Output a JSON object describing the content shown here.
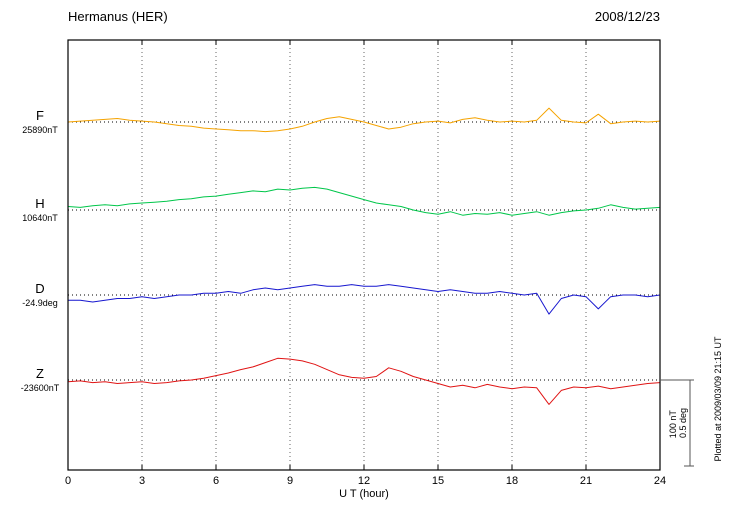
{
  "header": {
    "title": "Hermanus (HER)",
    "date": "2008/12/23"
  },
  "chart_data": {
    "type": "line",
    "title": "Hermanus (HER)",
    "date": "2008/12/23",
    "xlabel": "U T (hour)",
    "xlim": [
      0,
      24
    ],
    "xticks": [
      0,
      3,
      6,
      9,
      12,
      15,
      18,
      21,
      24
    ],
    "grid": "dotted vertical lines every 3 hours; dotted horizontal baseline per trace",
    "hours_step": 0.5,
    "scale_bar": {
      "labels": [
        "100 nT",
        "0.5 deg"
      ],
      "nT": 100,
      "deg": 0.5
    },
    "footer_note": "Plotted at 2009/03/09 21:15 UT",
    "series": [
      {
        "id": "F",
        "label": "F",
        "baseline_label": "25890nT",
        "unit": "nT",
        "color": "#f5a300",
        "values": [
          0,
          1,
          2,
          3,
          4,
          2,
          1,
          0,
          -2,
          -4,
          -5,
          -7,
          -8,
          -9,
          -10,
          -10,
          -11,
          -10,
          -8,
          -5,
          0,
          4,
          6,
          3,
          0,
          -4,
          -8,
          -6,
          -2,
          0,
          1,
          -1,
          3,
          5,
          2,
          0,
          1,
          0,
          2,
          16,
          2,
          0,
          -1,
          9,
          -2,
          0,
          1,
          0,
          1
        ]
      },
      {
        "id": "H",
        "label": "H",
        "baseline_label": "10640nT",
        "unit": "nT",
        "color": "#00c64a",
        "values": [
          4,
          3,
          5,
          6,
          5,
          7,
          8,
          9,
          10,
          12,
          13,
          15,
          16,
          18,
          20,
          22,
          21,
          24,
          23,
          25,
          26,
          24,
          20,
          16,
          12,
          8,
          6,
          4,
          0,
          -3,
          -5,
          -2,
          -6,
          -4,
          -5,
          -3,
          -6,
          -4,
          -2,
          -6,
          -3,
          -1,
          0,
          2,
          6,
          3,
          1,
          2,
          3
        ]
      },
      {
        "id": "D",
        "label": "D",
        "baseline_label": "-24.9deg",
        "unit": "deg",
        "color": "#1717cf",
        "values": [
          -0.03,
          -0.03,
          -0.04,
          -0.03,
          -0.02,
          -0.02,
          -0.01,
          -0.02,
          -0.01,
          0,
          0,
          0.01,
          0.01,
          0.02,
          0.01,
          0.03,
          0.04,
          0.03,
          0.04,
          0.05,
          0.06,
          0.05,
          0.05,
          0.06,
          0.05,
          0.05,
          0.06,
          0.05,
          0.04,
          0.03,
          0.02,
          0.03,
          0.02,
          0.01,
          0.01,
          0.02,
          0.01,
          0,
          0.01,
          -0.11,
          -0.02,
          0,
          -0.01,
          -0.08,
          -0.01,
          0,
          0,
          -0.01,
          0
        ]
      },
      {
        "id": "Z",
        "label": "Z",
        "baseline_label": "-23600nT",
        "unit": "nT",
        "color": "#e01414",
        "values": [
          -2,
          -1,
          -3,
          -2,
          -4,
          -3,
          -2,
          -4,
          -3,
          -1,
          0,
          2,
          5,
          8,
          12,
          15,
          20,
          25,
          24,
          22,
          18,
          12,
          6,
          3,
          2,
          4,
          14,
          10,
          4,
          0,
          -4,
          -8,
          -6,
          -9,
          -5,
          -8,
          -10,
          -8,
          -9,
          -28,
          -12,
          -8,
          -9,
          -7,
          -10,
          -8,
          -6,
          -4,
          -3
        ]
      }
    ]
  }
}
